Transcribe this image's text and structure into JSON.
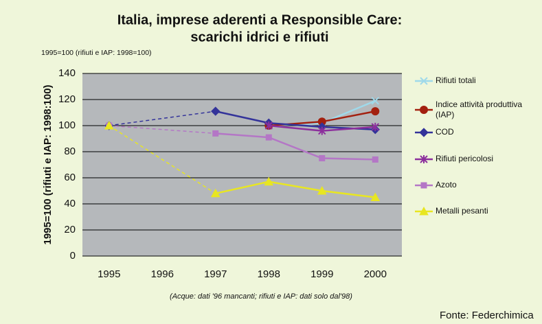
{
  "chart_data": {
    "type": "line",
    "title": [
      "Italia, imprese aderenti a Responsible Care:",
      "scarichi idrici e rifiuti"
    ],
    "subtitle": "1995=100 (rifiuti e IAP: 1998=100)",
    "y_label": "1995=100 (rifiuti e IAP: 1998:100)",
    "note": "(Acque: dati '96 mancanti; rifiuti e IAP: dati solo dal'98)",
    "source": "Fonte: Federchimica",
    "categories": [
      "1995",
      "1996",
      "1997",
      "1998",
      "1999",
      "2000"
    ],
    "ylim": [
      0,
      140
    ],
    "yticks": [
      0,
      20,
      40,
      60,
      80,
      100,
      120,
      140
    ],
    "grid": true,
    "legend": "right",
    "series": [
      {
        "name": "Rifiuti totali",
        "color": "#9fd9ea",
        "marker": "x",
        "values": [
          null,
          null,
          null,
          100,
          102,
          119
        ]
      },
      {
        "name": "Indice attività produttiva (IAP)",
        "color": "#a3200f",
        "marker": "circle",
        "values": [
          null,
          null,
          null,
          100,
          103,
          111
        ]
      },
      {
        "name": "COD",
        "color": "#33339a",
        "marker": "diamond",
        "values": [
          100,
          null,
          111,
          102,
          99,
          97
        ]
      },
      {
        "name": "Rifiuti pericolosi",
        "color": "#8c2f9c",
        "marker": "asterisk",
        "values": [
          null,
          null,
          null,
          100,
          96,
          99
        ]
      },
      {
        "name": "Azoto",
        "color": "#b476c6",
        "marker": "square",
        "values": [
          100,
          null,
          94,
          91,
          75,
          74
        ]
      },
      {
        "name": "Metalli pesanti",
        "color": "#e8e621",
        "marker": "triangle",
        "values": [
          100,
          null,
          48,
          57,
          50,
          45
        ]
      }
    ]
  }
}
